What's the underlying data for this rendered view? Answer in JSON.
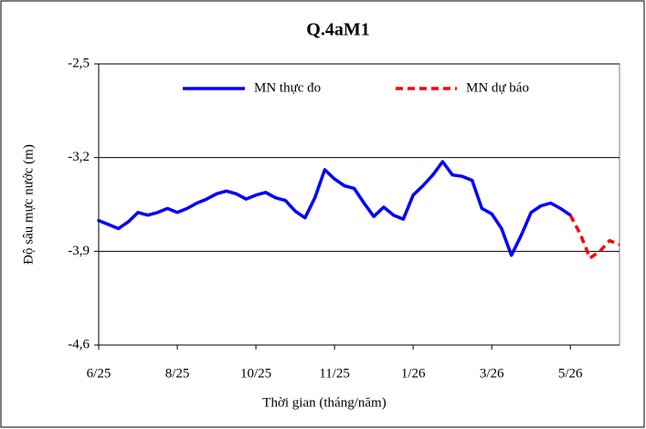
{
  "chart_data": {
    "type": "line",
    "title": "Q.4aM1",
    "x_label": "Thời gian (tháng/năm)",
    "y_label": "Độ sâu mực nước (m)",
    "categories": [
      "6/25",
      null,
      null,
      null,
      null,
      null,
      null,
      null,
      "8/25",
      null,
      null,
      null,
      null,
      null,
      null,
      null,
      "10/25",
      null,
      null,
      null,
      null,
      null,
      null,
      null,
      "11/25",
      null,
      null,
      null,
      null,
      null,
      null,
      null,
      "1/26",
      null,
      null,
      null,
      null,
      null,
      null,
      null,
      "3/26",
      null,
      null,
      null,
      null,
      null,
      null,
      null,
      "5/26",
      null,
      null,
      null,
      null,
      null
    ],
    "series": [
      {
        "name": "MN thực đo",
        "color": "#0000ff",
        "dash": false,
        "values": [
          -3.67,
          -3.7,
          -3.73,
          -3.68,
          -3.61,
          -3.63,
          -3.61,
          -3.58,
          -3.61,
          -3.58,
          -3.54,
          -3.51,
          -3.47,
          -3.45,
          -3.47,
          -3.51,
          -3.48,
          -3.46,
          -3.5,
          -3.52,
          -3.6,
          -3.65,
          -3.5,
          -3.29,
          -3.36,
          -3.41,
          -3.43,
          -3.54,
          -3.64,
          -3.57,
          -3.63,
          -3.66,
          -3.48,
          -3.41,
          -3.33,
          -3.23,
          -3.33,
          -3.34,
          -3.37,
          -3.58,
          -3.62,
          -3.73,
          -3.93,
          -3.78,
          -3.61,
          -3.56,
          -3.54,
          -3.58,
          -3.63,
          null,
          null,
          null,
          null,
          null
        ]
      },
      {
        "name": "MN dự báo",
        "color": "#ff0000",
        "dash": true,
        "values": [
          null,
          null,
          null,
          null,
          null,
          null,
          null,
          null,
          null,
          null,
          null,
          null,
          null,
          null,
          null,
          null,
          null,
          null,
          null,
          null,
          null,
          null,
          null,
          null,
          null,
          null,
          null,
          null,
          null,
          null,
          null,
          null,
          null,
          null,
          null,
          null,
          null,
          null,
          null,
          null,
          null,
          null,
          null,
          null,
          null,
          null,
          null,
          null,
          -3.63,
          -3.77,
          -3.95,
          -3.9,
          -3.82,
          -3.85
        ]
      }
    ],
    "ylim": [
      -4.6,
      -2.5
    ],
    "yticks": [
      {
        "value": -4.6,
        "label": "-4,6"
      },
      {
        "value": -3.9,
        "label": "-3,9"
      },
      {
        "value": -3.2,
        "label": "-3,2"
      },
      {
        "value": -2.5,
        "label": "-2,5"
      }
    ],
    "grid": true,
    "legend": "top"
  }
}
